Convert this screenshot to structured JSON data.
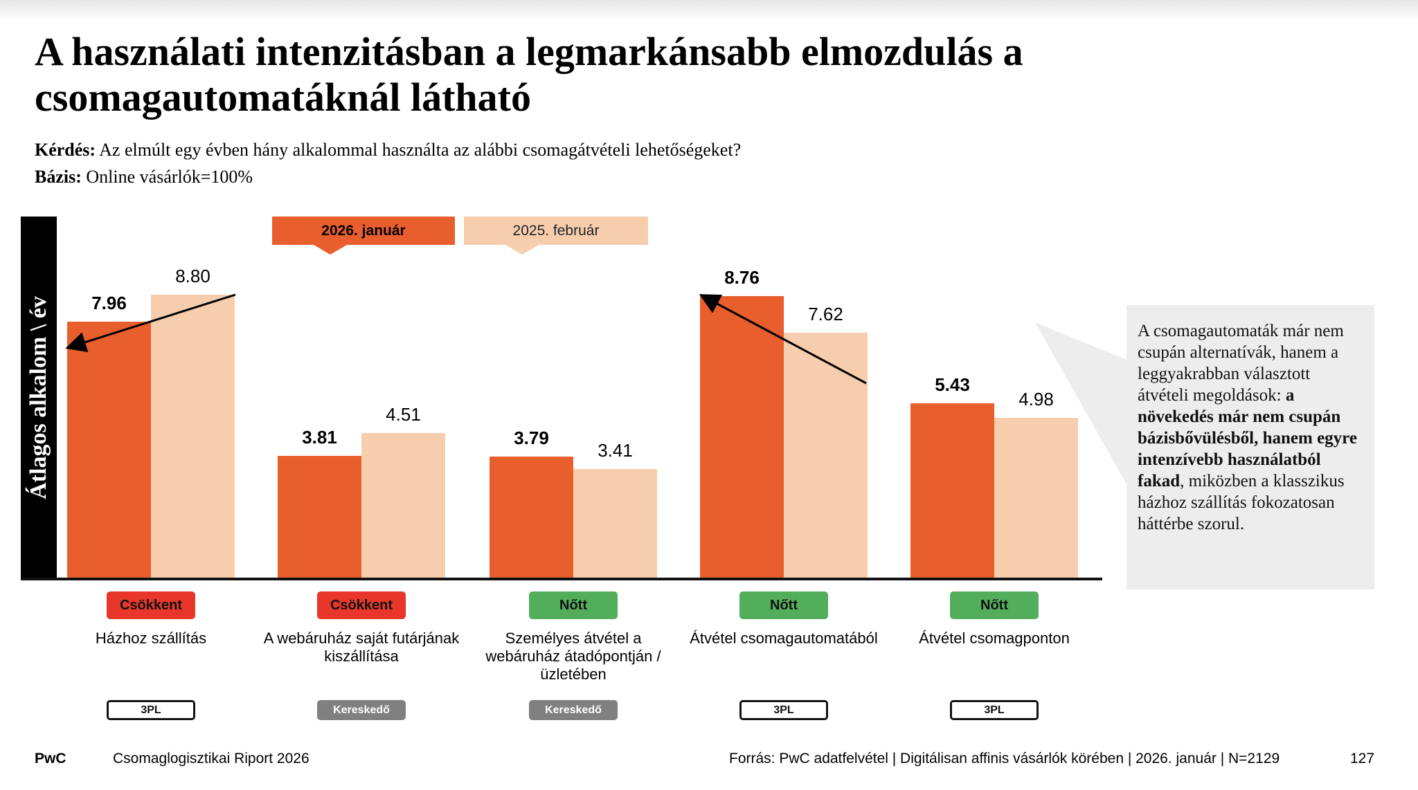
{
  "title": "A használati intenzitásban a legmarkánsabb elmozdulás a csomagautomatáknál látható",
  "question": {
    "label": "Kérdés:",
    "text": " Az elmúlt egy évben hány alkalommal használta az alábbi csomagátvételi lehetőségeket?"
  },
  "base": {
    "label": "Bázis:",
    "text": " Online vásárlók=100%"
  },
  "colors": {
    "current": "#e95e2d",
    "previous": "#f6cead",
    "decrease": "#e8372a",
    "increase": "#53ae5c"
  },
  "chart_data": {
    "type": "bar",
    "ylabel": "Átlagos alkalom \\ év",
    "ylim": [
      0,
      8.8
    ],
    "legend": [
      "2026. január",
      "2025. február"
    ],
    "categories": [
      "Házhoz szállítás",
      "A webáruház saját futárjának kiszállítása",
      "Személyes átvétel a webáruház átadópontján / üzletében",
      "Átvétel csomagautomatából",
      "Átvétel csomagponton"
    ],
    "series": [
      {
        "name": "2026. január",
        "values": [
          7.96,
          3.81,
          3.79,
          8.76,
          5.43
        ],
        "labels": [
          "7.96",
          "3.81",
          "3.79",
          "8.76",
          "5.43"
        ]
      },
      {
        "name": "2025. február",
        "values": [
          8.8,
          4.51,
          3.41,
          7.62,
          4.98
        ],
        "labels": [
          "8.80",
          "4.51",
          "3.41",
          "7.62",
          "4.98"
        ]
      }
    ],
    "status": [
      "Csökkent",
      "Csökkent",
      "Nőtt",
      "Nőtt",
      "Nőtt"
    ],
    "status_type": [
      "decrease",
      "decrease",
      "increase",
      "increase",
      "increase"
    ],
    "provider": [
      "3PL",
      "Kereskedő",
      "Kereskedő",
      "3PL",
      "3PL"
    ],
    "provider_style": [
      "outline",
      "filled",
      "filled",
      "outline",
      "outline"
    ]
  },
  "callout": {
    "pre": "A csomagautomaták már nem csupán alternatívák, hanem a leggyakrabban választott átvételi megoldások: ",
    "bold": "a növekedés már nem csupán bázisbővülésből, hanem egyre intenzívebb használatból fakad",
    "post": ", miközben a klasszikus házhoz szállítás fokozatosan háttérbe szorul."
  },
  "footer": {
    "brand": "PwC",
    "report": "Csomaglogisztikai Riport 2026",
    "source": "Forrás: PwC adatfelvétel | Digitálisan affinis vásárlók körében | 2026. január |  N=2129",
    "page": "127"
  }
}
